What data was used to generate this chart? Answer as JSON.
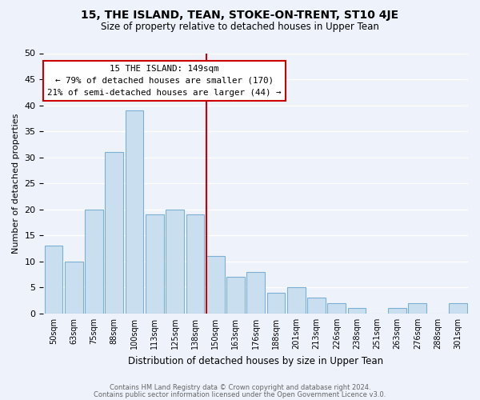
{
  "title": "15, THE ISLAND, TEAN, STOKE-ON-TRENT, ST10 4JE",
  "subtitle": "Size of property relative to detached houses in Upper Tean",
  "xlabel": "Distribution of detached houses by size in Upper Tean",
  "ylabel": "Number of detached properties",
  "footer_lines": [
    "Contains HM Land Registry data © Crown copyright and database right 2024.",
    "Contains public sector information licensed under the Open Government Licence v3.0."
  ],
  "bar_labels": [
    "50sqm",
    "63sqm",
    "75sqm",
    "88sqm",
    "100sqm",
    "113sqm",
    "125sqm",
    "138sqm",
    "150sqm",
    "163sqm",
    "176sqm",
    "188sqm",
    "201sqm",
    "213sqm",
    "226sqm",
    "238sqm",
    "251sqm",
    "263sqm",
    "276sqm",
    "288sqm",
    "301sqm"
  ],
  "bar_values": [
    13,
    10,
    20,
    31,
    39,
    19,
    20,
    19,
    11,
    7,
    8,
    4,
    5,
    3,
    2,
    1,
    0,
    1,
    2,
    0,
    2
  ],
  "bar_color": "#c9dff0",
  "bar_edgecolor": "#7bafd4",
  "background_color": "#eef2fb",
  "grid_color": "#ffffff",
  "marker_index": 8,
  "marker_color": "#cc0000",
  "annotation_title": "15 THE ISLAND: 149sqm",
  "annotation_line1": "← 79% of detached houses are smaller (170)",
  "annotation_line2": "21% of semi-detached houses are larger (44) →",
  "annotation_box_edgecolor": "#cc0000",
  "ylim": [
    0,
    50
  ],
  "yticks": [
    0,
    5,
    10,
    15,
    20,
    25,
    30,
    35,
    40,
    45,
    50
  ]
}
